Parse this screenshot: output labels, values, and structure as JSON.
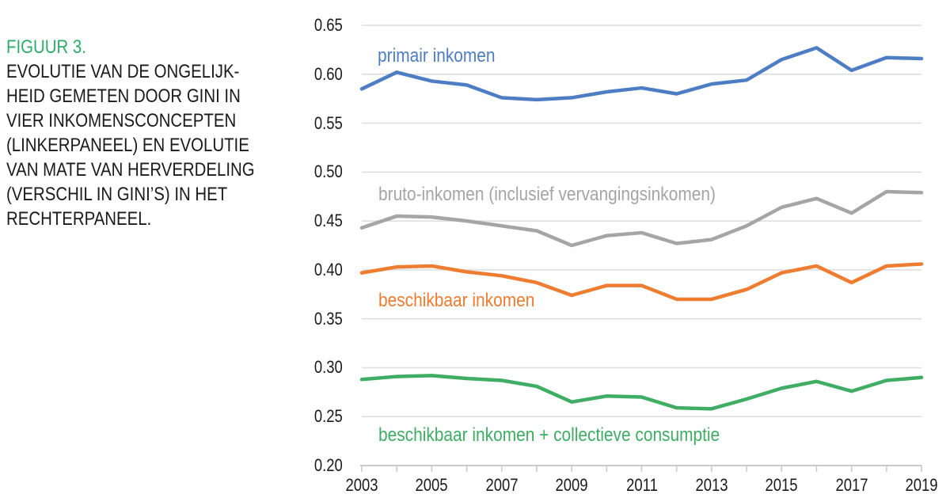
{
  "figure": {
    "heading": "FIGUUR 3.",
    "heading_color": "#2eac68",
    "text_color": "#1a1a1a",
    "caption_lines": [
      "EVOLUTIE VAN DE ONGELIJK-",
      "HEID GEMETEN DOOR GINI IN",
      "VIER INKOMENSCONCEPTEN",
      "(LINKERPANEEL) EN EVOLUTIE",
      "VAN MATE VAN HERVERDELING",
      "(VERSCHIL IN GINI’S) IN HET",
      "RECHTERPANEEL."
    ]
  },
  "chart_data": {
    "type": "line",
    "x": [
      2003,
      2004,
      2005,
      2006,
      2007,
      2008,
      2009,
      2010,
      2011,
      2012,
      2013,
      2014,
      2015,
      2016,
      2017,
      2018,
      2019
    ],
    "x_tick_labels": [
      "2003",
      "2005",
      "2007",
      "2009",
      "2011",
      "2013",
      "2015",
      "2017",
      "2019"
    ],
    "y_tick_labels": [
      "0.65",
      "0.60",
      "0.55",
      "0.50",
      "0.45",
      "0.40",
      "0.35",
      "0.30",
      "0.25",
      "0.20"
    ],
    "ylim": [
      0.2,
      0.65
    ],
    "grid": "horizontal",
    "legend_position": "inline-labels",
    "grid_color": "#dcdcdc",
    "axis_color": "#c9c9c9",
    "tick_text_color": "#1a1a1a",
    "series": [
      {
        "name": "primair inkomen",
        "color": "#4d7ec3",
        "values": [
          0.585,
          0.602,
          0.593,
          0.589,
          0.576,
          0.574,
          0.576,
          0.582,
          0.586,
          0.58,
          0.59,
          0.594,
          0.615,
          0.627,
          0.604,
          0.617,
          0.616
        ]
      },
      {
        "name": "bruto-inkomen (inclusief vervangingsinkomen)",
        "color": "#a5a5a5",
        "values": [
          0.443,
          0.455,
          0.454,
          0.45,
          0.445,
          0.44,
          0.425,
          0.435,
          0.438,
          0.427,
          0.431,
          0.445,
          0.464,
          0.473,
          0.458,
          0.48,
          0.479
        ]
      },
      {
        "name": "beschikbaar inkomen",
        "color": "#ee7c31",
        "values": [
          0.397,
          0.403,
          0.404,
          0.398,
          0.394,
          0.387,
          0.374,
          0.384,
          0.384,
          0.37,
          0.37,
          0.38,
          0.397,
          0.404,
          0.387,
          0.404,
          0.406
        ]
      },
      {
        "name": "beschikbaar inkomen + collectieve consumptie",
        "color": "#3fad63",
        "values": [
          0.288,
          0.291,
          0.292,
          0.289,
          0.287,
          0.281,
          0.265,
          0.271,
          0.27,
          0.259,
          0.258,
          0.268,
          0.279,
          0.286,
          0.276,
          0.287,
          0.29
        ]
      }
    ]
  }
}
